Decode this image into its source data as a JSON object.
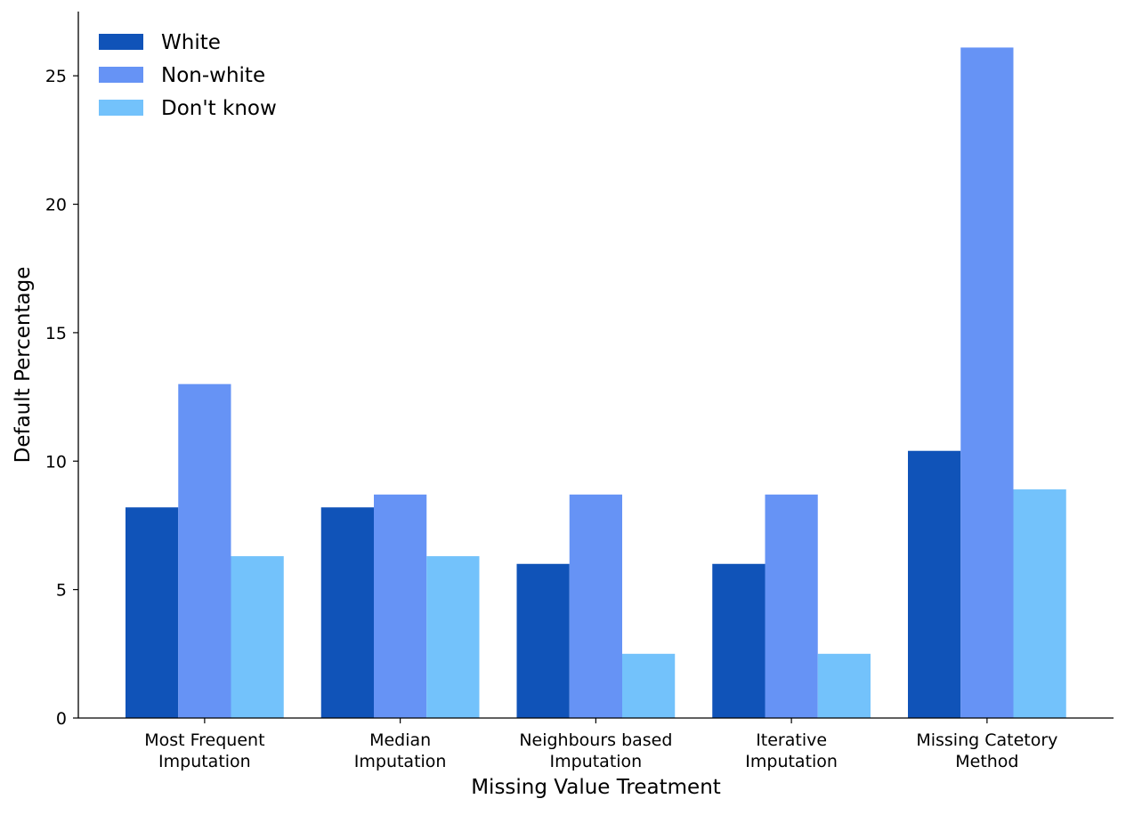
{
  "chart_data": {
    "type": "bar",
    "title": "",
    "xlabel": "Missing Value Treatment",
    "ylabel": "Default Percentage",
    "categories": [
      [
        "Most Frequent",
        "Imputation"
      ],
      [
        "Median",
        "Imputation"
      ],
      [
        "Neighbours based",
        "Imputation"
      ],
      [
        "Iterative",
        "Imputation"
      ],
      [
        "Missing Catetory",
        "Method"
      ]
    ],
    "series": [
      {
        "name": "White",
        "color": "#1053b8",
        "values": [
          8.2,
          8.2,
          6.0,
          6.0,
          10.4
        ]
      },
      {
        "name": "Non-white",
        "color": "#6693f5",
        "values": [
          13.0,
          8.7,
          8.7,
          8.7,
          26.1
        ]
      },
      {
        "name": "Don't know",
        "color": "#73c2fb",
        "values": [
          6.3,
          6.3,
          2.5,
          2.5,
          8.9
        ]
      }
    ],
    "ylim": [
      0,
      27.5
    ],
    "yticks": [
      0,
      5,
      10,
      15,
      20,
      25
    ],
    "grid": false,
    "legend_position": "top-left"
  }
}
